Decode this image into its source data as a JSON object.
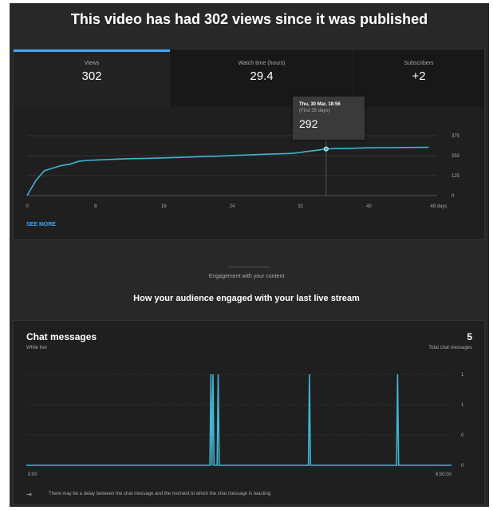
{
  "page": {
    "headline": "This video has had 302 views since it was published"
  },
  "tabs": [
    {
      "label": "Views",
      "value": "302"
    },
    {
      "label": "Watch time (hours)",
      "value": "29.4"
    },
    {
      "label": "Subscribers",
      "value": "+2"
    }
  ],
  "tooltip": {
    "date": "Thu, 30 Mar, 18:56",
    "sub": "(First 35 days)",
    "value": "292"
  },
  "see_more": "SEE MORE",
  "engagement": {
    "caption": "Engagement with your content",
    "title": "How your audience engaged with your last live stream"
  },
  "chat": {
    "title": "Chat messages",
    "subtitle": "While live",
    "count": "5",
    "count_label": "Total chat messages"
  },
  "note": {
    "icon": "chat-delay-icon",
    "text": "There may be a delay between the chat message and the moment to which the chat message is reacting"
  },
  "colors": {
    "accent": "#3ea6ff",
    "line": "#41b4d2",
    "background": "#282828",
    "card": "#1f1f1f"
  },
  "chart_data": [
    {
      "type": "line",
      "title": "",
      "xlabel": "",
      "ylabel": "",
      "x_ticks": [
        "0",
        "8",
        "16",
        "24",
        "32",
        "40",
        "48 days"
      ],
      "y_ticks": [
        "375",
        "250",
        "125",
        "0"
      ],
      "xlim": [
        0,
        48
      ],
      "ylim": [
        0,
        375
      ],
      "grid": true,
      "highlight": {
        "x": 35,
        "y": 292
      },
      "series": [
        {
          "x": [
            0,
            1,
            2,
            3,
            4,
            5,
            6,
            7,
            8,
            10,
            12,
            14,
            16,
            18,
            20,
            22,
            24,
            26,
            28,
            30,
            31,
            32,
            33,
            34,
            35,
            36,
            38,
            40,
            42,
            44,
            46,
            47
          ],
          "y": [
            0,
            92,
            155,
            172,
            188,
            196,
            214,
            220,
            222,
            227,
            231,
            233,
            236,
            239,
            243,
            246,
            251,
            255,
            259,
            262,
            264,
            270,
            278,
            284,
            292,
            294,
            296,
            299,
            300,
            301,
            302,
            302
          ]
        }
      ]
    },
    {
      "type": "line",
      "title": "",
      "xlabel": "",
      "ylabel": "",
      "x_ticks": [
        "0:00",
        "6:50:00"
      ],
      "y_ticks": [
        "1",
        "1",
        "0",
        "0"
      ],
      "xlim": [
        0,
        410
      ],
      "ylim": [
        0,
        1
      ],
      "grid": true,
      "series": [
        {
          "x": [
            0,
            177,
            178,
            179,
            180,
            181,
            184,
            185,
            186,
            272,
            273,
            274,
            357,
            358,
            359,
            410
          ],
          "y": [
            0,
            0,
            1,
            0,
            1,
            0,
            0,
            1,
            0,
            0,
            1,
            0,
            0,
            1,
            0,
            0
          ]
        }
      ]
    }
  ]
}
